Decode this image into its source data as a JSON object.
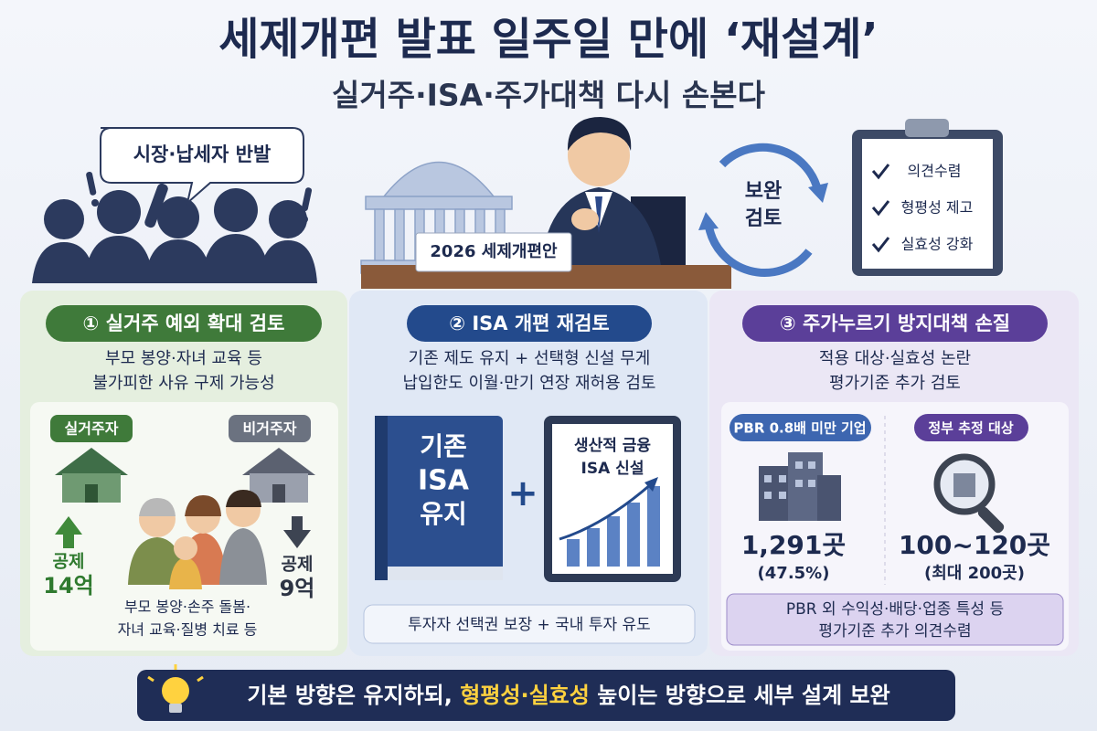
{
  "header": {
    "title": "세제개편 발표 일주일 만에 ‘재설계’",
    "subtitle": "실거주·ISA·주가대책 다시 손본다"
  },
  "scene": {
    "speech": "시장·납세자 반발",
    "nameplate": "2026 세제개편안",
    "cycle": [
      "보완",
      "검토"
    ],
    "checklist": [
      "의견수렴",
      "형평성 제고",
      "실효성 강화"
    ]
  },
  "panels": [
    {
      "title": "① 실거주 예외 확대 검토",
      "desc": [
        "부모 봉양·자녀 교육 등",
        "불가피한 사유 구제 가능성"
      ],
      "left": {
        "label": "실거주자",
        "deduction": [
          "공제",
          "14억"
        ]
      },
      "right": {
        "label": "비거주자",
        "deduction": [
          "공제",
          "9억"
        ]
      },
      "note": [
        "부모 봉양·손주 돌봄·",
        "자녀 교육·질병 치료 등"
      ]
    },
    {
      "title": "② ISA 개편 재검토",
      "desc": [
        "기존 제도 유지 + 선택형 신설 무게",
        "납입한도 이월·만기 연장 재허용 검토"
      ],
      "book": [
        "기존",
        "ISA",
        "유지"
      ],
      "plus": "+",
      "board": [
        "생산적 금융",
        "ISA 신설"
      ],
      "footer": "투자자 선택권 보장 + 국내 투자 유도"
    },
    {
      "title": "③ 주가누르기 방지대책 손질",
      "desc": [
        "적용 대상·실효성 논란",
        "평가기준 추가 검토"
      ],
      "left": {
        "label": "PBR 0.8배 미만 기업",
        "value": "1,291곳",
        "sub": "(47.5%)"
      },
      "right": {
        "label": "정부 추정 대상",
        "value": "100~120곳",
        "sub": "(최대 200곳)"
      },
      "footer": [
        "PBR 외 수익성·배당·업종 특성 등",
        "평가기준 추가 의견수렴"
      ]
    }
  ],
  "banner": {
    "before": "기본 방향은 유지하되, ",
    "highlight": "형평성·실효성",
    "after": " 높이는 방향으로 세부 설계 보완"
  }
}
